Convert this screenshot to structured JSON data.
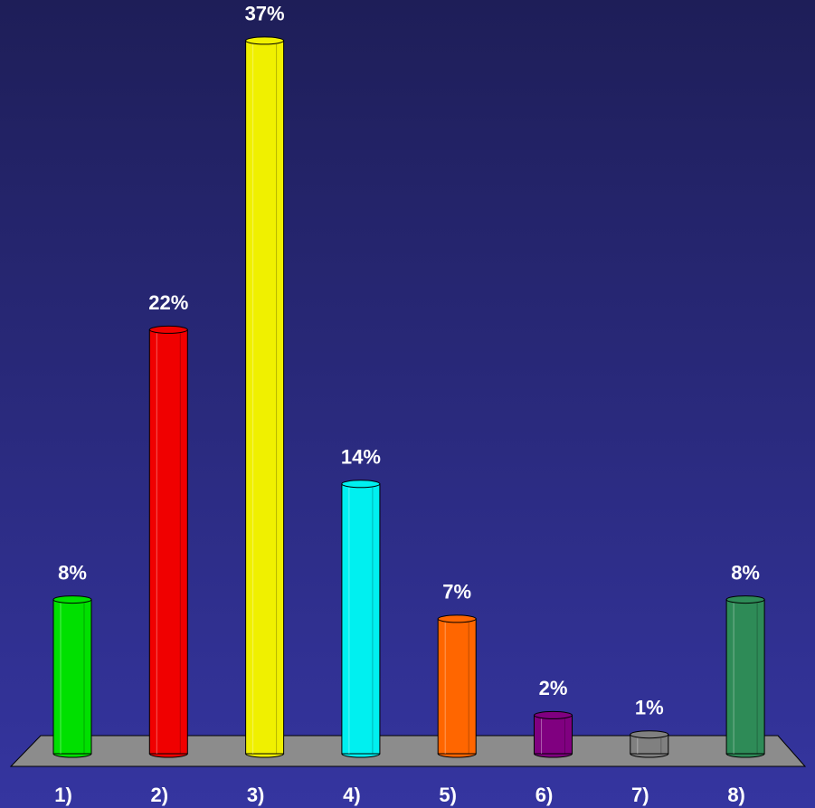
{
  "chart_data": {
    "type": "bar",
    "categories": [
      "1)",
      "2)",
      "3)",
      "4)",
      "5)",
      "6)",
      "7)",
      "8)"
    ],
    "values": [
      8,
      22,
      37,
      14,
      7,
      2,
      1,
      8
    ],
    "value_labels": [
      "8%",
      "22%",
      "37%",
      "14%",
      "7%",
      "2%",
      "1%",
      "8%"
    ],
    "colors": [
      "#00e000",
      "#f00000",
      "#f0f000",
      "#00f0f0",
      "#ff6600",
      "#800080",
      "#808080",
      "#2e8b57"
    ]
  }
}
